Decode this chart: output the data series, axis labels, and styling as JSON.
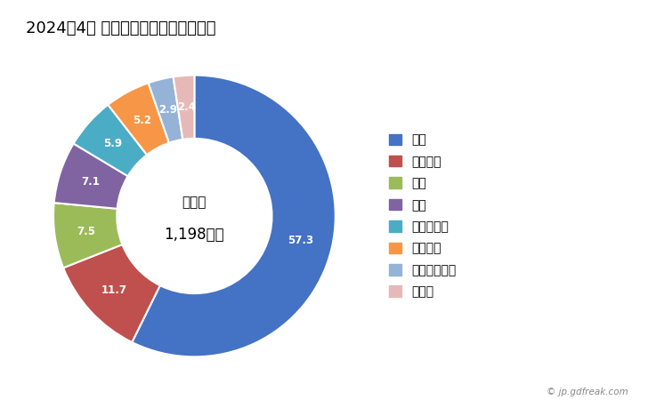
{
  "title": "2024年4月 輸出相手国のシェア（％）",
  "center_label_line1": "総　額",
  "center_label_line2": "1,198万円",
  "labels": [
    "中国",
    "フランス",
    "韓国",
    "米国",
    "ボルトガル",
    "イタリア",
    "インドネシア",
    "その他"
  ],
  "values": [
    57.3,
    11.7,
    7.5,
    7.1,
    5.9,
    5.2,
    2.9,
    2.4
  ],
  "colors": [
    "#4472C4",
    "#C0504D",
    "#9BBB59",
    "#8064A2",
    "#4BACC6",
    "#F79646",
    "#95B3D7",
    "#E6B9B8"
  ],
  "label_colors": [
    "white",
    "white",
    "white",
    "white",
    "white",
    "white",
    "white",
    "white"
  ],
  "watermark": "© jp.gdfreak.com",
  "title_fontsize": 13,
  "background_color": "#FFFFFF"
}
